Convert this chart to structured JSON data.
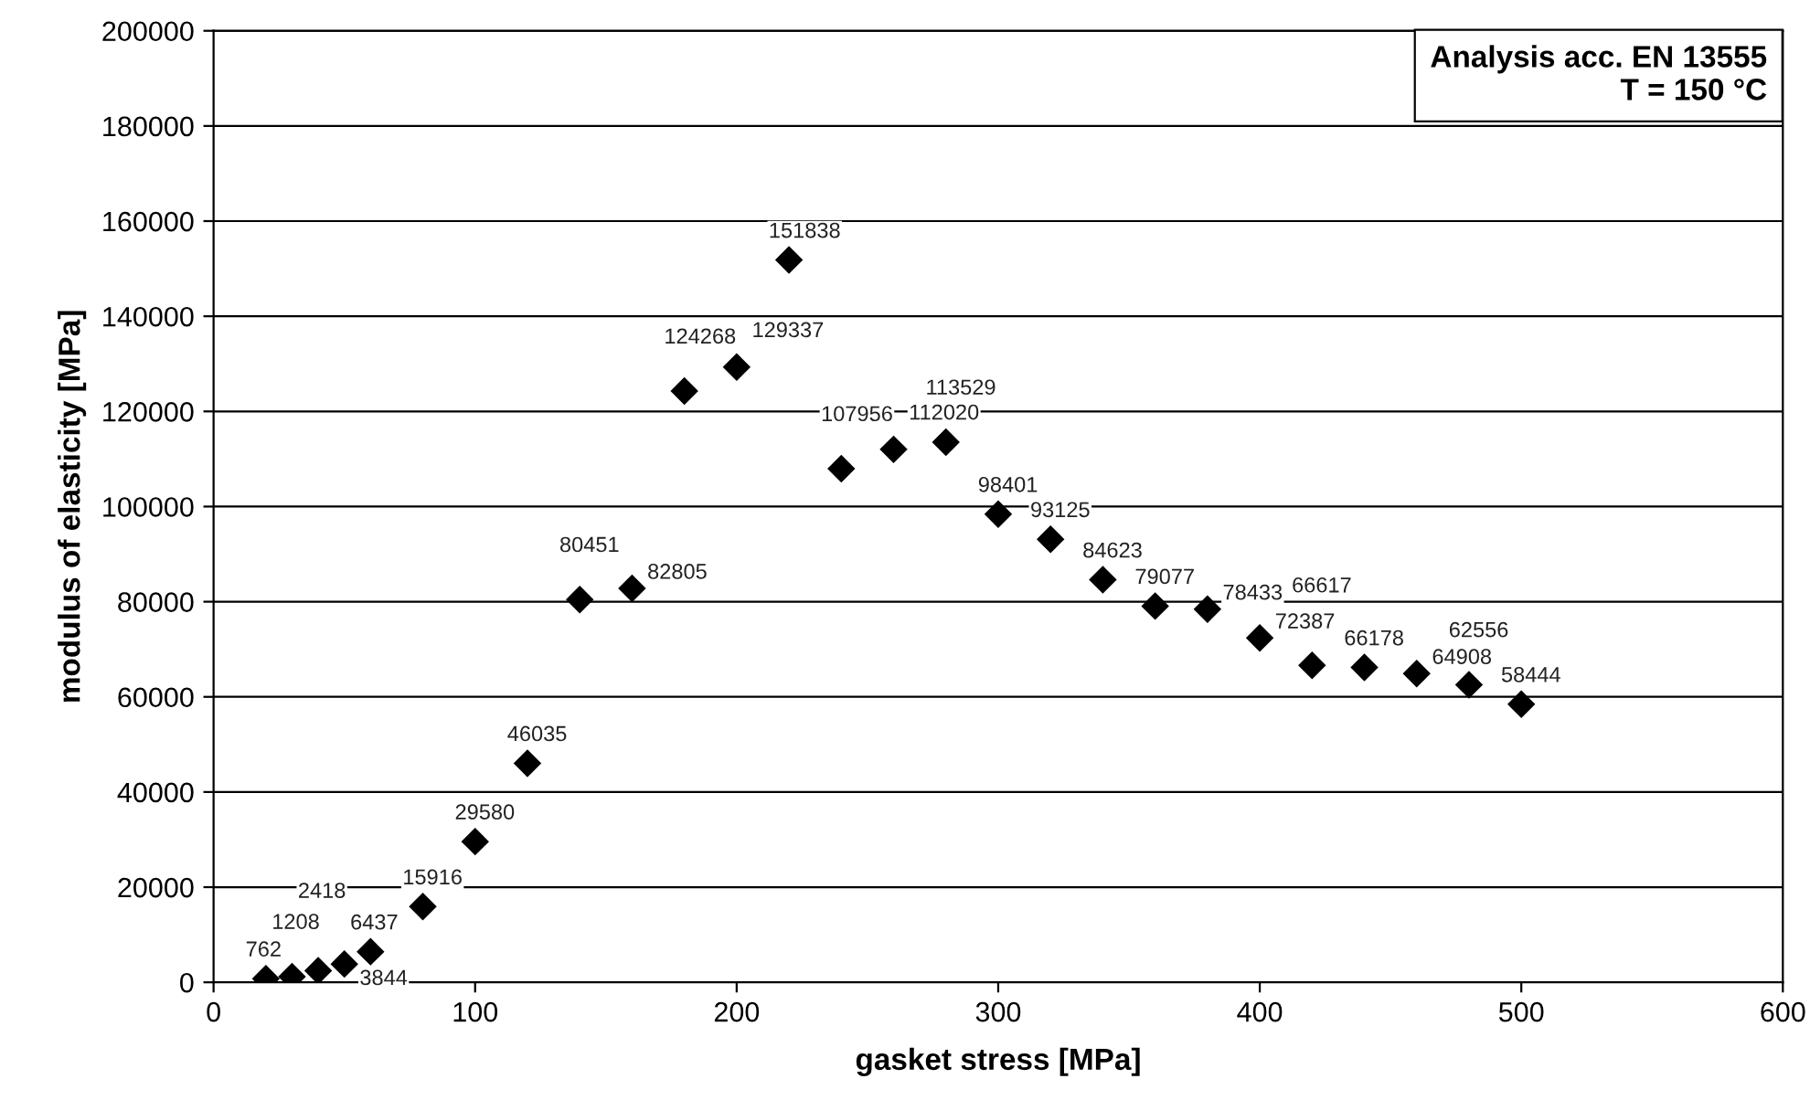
{
  "chart_data": {
    "type": "scatter",
    "xlabel": "gasket stress [MPa]",
    "ylabel": "modulus of elasticity [MPa]",
    "annotations": [
      "Analysis acc. EN 13555\nT = 150 °C"
    ],
    "x": [
      20,
      30,
      40,
      50,
      60,
      80,
      100,
      120,
      140,
      160,
      180,
      200,
      220,
      240,
      260,
      280,
      300,
      320,
      340,
      360,
      380,
      400,
      420,
      440,
      460,
      480,
      500
    ],
    "series": [
      {
        "color": "#000000",
        "values": [
          762,
          1208,
          2418,
          3844,
          6437,
          15916,
          29580,
          46035,
          80451,
          82805,
          124268,
          129337,
          151838,
          107956,
          112020,
          113529,
          98401,
          93125,
          84623,
          79077,
          78433,
          72387,
          66617,
          66178,
          64908,
          62556,
          58444
        ]
      }
    ],
    "data_labels": true,
    "marker": "diamond",
    "grid": "y",
    "xlim": [
      0,
      600
    ],
    "xticks": [
      0,
      100,
      200,
      300,
      400,
      500,
      600
    ],
    "ylim": [
      0,
      200000
    ],
    "yticks": [
      0,
      20000,
      40000,
      60000,
      80000,
      100000,
      120000,
      140000,
      160000,
      180000,
      200000
    ]
  }
}
